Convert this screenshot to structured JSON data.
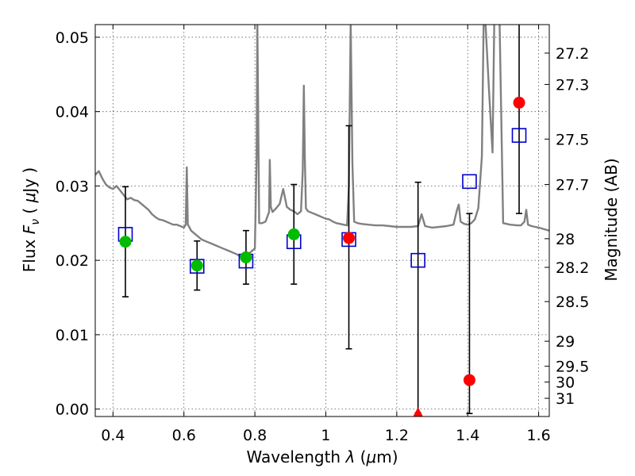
{
  "chart_data": {
    "type": "scatter",
    "title": "",
    "xlabel": "Wavelength  λ (μm)",
    "ylabel": "Flux  F_ν  ( μJy )",
    "ylabel_parts": {
      "prefix": "Flux  ",
      "symbol": "F",
      "subscript": "ν",
      "unit_open": "  ( ",
      "unit_mu": "μ",
      "unit_rest": "Jy )"
    },
    "xlabel_parts": {
      "prefix": "Wavelength  ",
      "symbol": "λ",
      "unit_open": " (",
      "unit_mu": "μ",
      "unit_rest": "m)"
    },
    "y2label": "Magnitude (AB)",
    "xlim": [
      0.35,
      1.63
    ],
    "ylim": [
      -0.001,
      0.0517
    ],
    "grid": true,
    "x_ticks": [
      0.4,
      0.6,
      0.8,
      1.0,
      1.2,
      1.4,
      1.6
    ],
    "x_tick_labels": [
      "0.4",
      "0.6",
      "0.8",
      "1",
      "1.2",
      "1.4",
      "1.6"
    ],
    "y_ticks": [
      0.0,
      0.01,
      0.02,
      0.03,
      0.04,
      0.05
    ],
    "y_tick_labels": [
      "0.00",
      "0.01",
      "0.02",
      "0.03",
      "0.04",
      "0.05"
    ],
    "mag_ticks": [
      27.2,
      27.3,
      27.5,
      27.7,
      28,
      28.2,
      28.5,
      29,
      29.5,
      30,
      31
    ],
    "mag_tick_labels": [
      "27.2",
      "27.3",
      "27.5",
      "27.7",
      "28",
      "28.2",
      "28.5",
      "29",
      "29.5",
      "30",
      "31"
    ],
    "colors": {
      "model": "#808080",
      "detected": "#00bb00",
      "marginal": "#ff0000",
      "model_band": "#0000cc",
      "errorbar": "#000000"
    },
    "series": [
      {
        "kind": "model_spectrum",
        "x": [
          0.35,
          0.36,
          0.37,
          0.38,
          0.39,
          0.4,
          0.41,
          0.42,
          0.43,
          0.44,
          0.45,
          0.46,
          0.47,
          0.48,
          0.49,
          0.5,
          0.51,
          0.52,
          0.53,
          0.54,
          0.55,
          0.56,
          0.57,
          0.58,
          0.59,
          0.6,
          0.605,
          0.608,
          0.611,
          0.615,
          0.62,
          0.63,
          0.64,
          0.65,
          0.66,
          0.67,
          0.68,
          0.69,
          0.7,
          0.71,
          0.72,
          0.73,
          0.74,
          0.75,
          0.76,
          0.77,
          0.78,
          0.79,
          0.8,
          0.805,
          0.807,
          0.809,
          0.812,
          0.82,
          0.83,
          0.84,
          0.842,
          0.845,
          0.85,
          0.86,
          0.87,
          0.88,
          0.89,
          0.9,
          0.91,
          0.92,
          0.93,
          0.935,
          0.938,
          0.941,
          0.944,
          0.95,
          0.96,
          0.97,
          0.98,
          0.99,
          1.0,
          1.01,
          1.02,
          1.03,
          1.04,
          1.05,
          1.06,
          1.065,
          1.07,
          1.075,
          1.08,
          1.09,
          1.1,
          1.12,
          1.14,
          1.16,
          1.18,
          1.2,
          1.22,
          1.24,
          1.26,
          1.27,
          1.28,
          1.29,
          1.3,
          1.32,
          1.34,
          1.36,
          1.37,
          1.375,
          1.38,
          1.39,
          1.4,
          1.41,
          1.42,
          1.43,
          1.44,
          1.445,
          1.45,
          1.46,
          1.47,
          1.475,
          1.48,
          1.49,
          1.5,
          1.52,
          1.54,
          1.55,
          1.56,
          1.565,
          1.57,
          1.58,
          1.6,
          1.63
        ],
        "y": [
          0.0315,
          0.032,
          0.031,
          0.0302,
          0.0298,
          0.0296,
          0.03,
          0.0294,
          0.0288,
          0.0282,
          0.0284,
          0.0281,
          0.028,
          0.0276,
          0.0272,
          0.0268,
          0.0262,
          0.0258,
          0.0255,
          0.0254,
          0.0252,
          0.025,
          0.0248,
          0.0248,
          0.0246,
          0.0244,
          0.0248,
          0.0325,
          0.0248,
          0.0245,
          0.024,
          0.0236,
          0.0232,
          0.0228,
          0.0226,
          0.0224,
          0.0222,
          0.022,
          0.0218,
          0.0216,
          0.0214,
          0.0212,
          0.021,
          0.0208,
          0.0205,
          0.0203,
          0.0207,
          0.0212,
          0.0216,
          0.034,
          0.052,
          0.042,
          0.025,
          0.025,
          0.0252,
          0.0265,
          0.0335,
          0.0272,
          0.0265,
          0.027,
          0.0276,
          0.0296,
          0.0272,
          0.0268,
          0.0266,
          0.0262,
          0.0266,
          0.032,
          0.0435,
          0.0335,
          0.027,
          0.0266,
          0.0264,
          0.0262,
          0.026,
          0.0258,
          0.0256,
          0.0255,
          0.0252,
          0.025,
          0.0249,
          0.0248,
          0.0247,
          0.03,
          0.052,
          0.033,
          0.0252,
          0.025,
          0.0249,
          0.0248,
          0.0247,
          0.0247,
          0.0246,
          0.0245,
          0.0245,
          0.0245,
          0.0246,
          0.0262,
          0.0246,
          0.0245,
          0.0244,
          0.0245,
          0.0246,
          0.0248,
          0.0268,
          0.0275,
          0.0252,
          0.0249,
          0.0248,
          0.025,
          0.0255,
          0.027,
          0.034,
          0.052,
          0.052,
          0.043,
          0.0345,
          0.052,
          0.052,
          0.052,
          0.025,
          0.0248,
          0.0247,
          0.0247,
          0.0252,
          0.0268,
          0.0248,
          0.0246,
          0.0244,
          0.024
        ]
      },
      {
        "kind": "detected",
        "x": [
          0.435,
          0.637,
          0.775,
          0.91
        ],
        "y": [
          0.0225,
          0.0193,
          0.0204,
          0.0235
        ],
        "yerr": [
          0.0074,
          0.0033,
          0.0036,
          0.0067
        ]
      },
      {
        "kind": "marginal",
        "x": [
          1.065,
          1.26,
          1.405,
          1.545
        ],
        "y": [
          0.023,
          -0.0005,
          0.0039,
          0.0412
        ],
        "yerr_low": [
          0.0149,
          0.0,
          0.0045,
          0.0149
        ],
        "yerr_high": [
          0.0151,
          0.031,
          0.0224,
          0.0149
        ],
        "marker": [
          "circle",
          "triangle",
          "circle",
          "circle"
        ]
      },
      {
        "kind": "model_band",
        "x": [
          0.435,
          0.637,
          0.775,
          0.91,
          1.065,
          1.26,
          1.405,
          1.545
        ],
        "y": [
          0.0235,
          0.0192,
          0.0199,
          0.0225,
          0.0228,
          0.02,
          0.0306,
          0.0368
        ]
      }
    ]
  }
}
